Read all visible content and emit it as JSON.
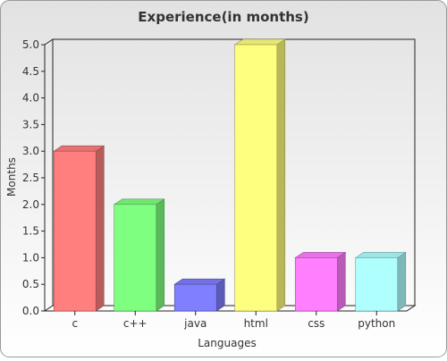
{
  "chart_data": {
    "type": "bar",
    "title": "Experience(in months)",
    "xlabel": "Languages",
    "ylabel": "Months",
    "categories": [
      "c",
      "c++",
      "java",
      "html",
      "css",
      "python"
    ],
    "values": [
      3.0,
      2.0,
      0.5,
      5.0,
      1.0,
      1.0
    ],
    "ylim": [
      0,
      5
    ],
    "yticks": [
      "0.0",
      "0.5",
      "1.0",
      "1.5",
      "2.0",
      "2.5",
      "3.0",
      "3.5",
      "4.0",
      "4.5",
      "5.0"
    ],
    "grid": false,
    "legend": "none",
    "colors": [
      "#ff7f7f",
      "#7fff7f",
      "#7f7fff",
      "#ffff7f",
      "#ff7fff",
      "#afffff"
    ],
    "background": "#eeeeee"
  }
}
